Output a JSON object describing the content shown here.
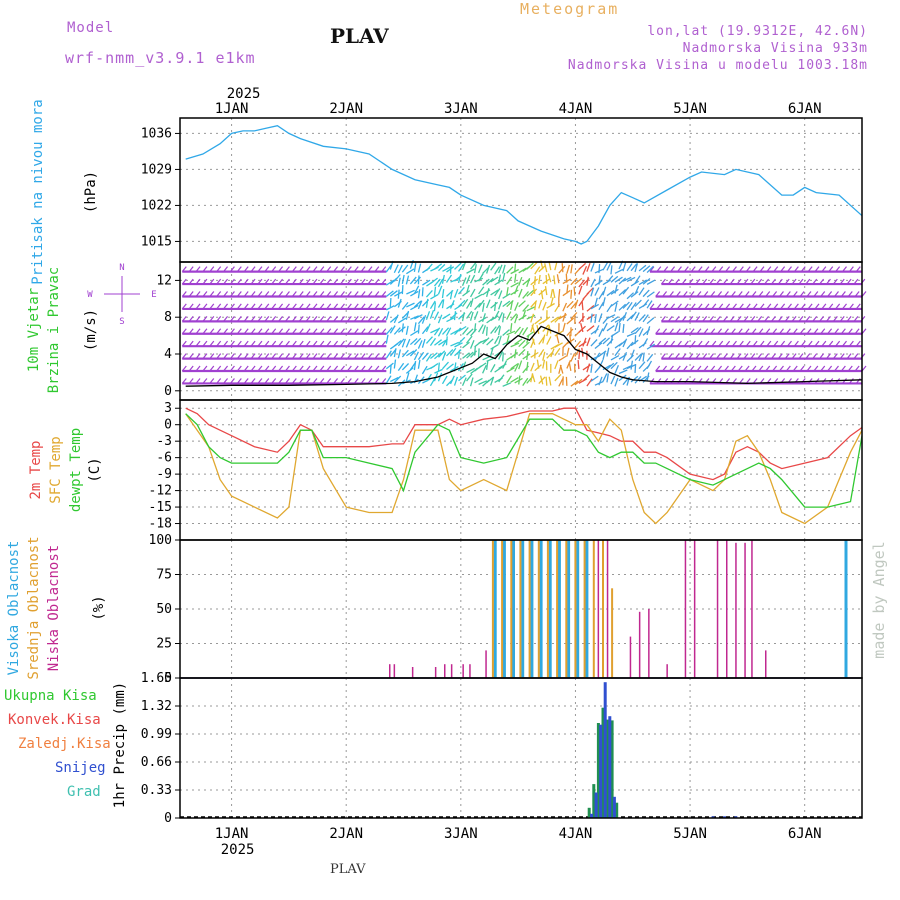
{
  "header": {
    "model_label": "Model",
    "model_name": "wrf-nmm_v3.9.1 e1km",
    "station": "PLAV",
    "meteogram": "Meteogram",
    "lonlat": "lon,lat (19.9312E, 42.6N)",
    "altitude": "Nadmorska Visina 933m",
    "model_altitude": "Nadmorska Visina u modelu 1003.18m",
    "footer": "PLAV",
    "watermark": "made by Angel",
    "year": "2025"
  },
  "colors": {
    "pressure": "#30a8e8",
    "temp2m": "#e84848",
    "sfc": "#e0a830",
    "dewpt": "#30c830",
    "high_cloud": "#30a8e0",
    "mid_cloud": "#e0a030",
    "low_cloud": "#c02890",
    "total_precip": "#209050",
    "snow": "#3050d0",
    "grad": "#40c0b0",
    "wind_purple": "#a040d0"
  },
  "chart_data": [
    {
      "type": "line",
      "name": "pressure",
      "ylabel_main": "Pritisak na nivou mora",
      "ylabel_unit": "(hPa)",
      "yticks": [
        "1036",
        "1029",
        "1022",
        "1015"
      ],
      "ylim": [
        1011,
        1039
      ],
      "x_days": [
        "1JAN",
        "2JAN",
        "3JAN",
        "4JAN",
        "5JAN",
        "6JAN"
      ],
      "x": [
        0.6,
        0.75,
        0.9,
        1.0,
        1.1,
        1.2,
        1.3,
        1.4,
        1.5,
        1.6,
        1.8,
        2.0,
        2.2,
        2.4,
        2.6,
        2.8,
        2.9,
        3.0,
        3.2,
        3.4,
        3.5,
        3.7,
        3.9,
        4.0,
        4.05,
        4.1,
        4.2,
        4.3,
        4.4,
        4.5,
        4.6,
        4.8,
        5.0,
        5.1,
        5.3,
        5.4,
        5.6,
        5.8,
        5.9,
        6.0,
        6.1,
        6.3,
        6.5
      ],
      "values": [
        1031,
        1032,
        1034,
        1036,
        1036.5,
        1036.5,
        1037,
        1037.5,
        1036,
        1035,
        1033.5,
        1033,
        1032,
        1029,
        1027,
        1026,
        1025.5,
        1024,
        1022,
        1021,
        1019,
        1017,
        1015.5,
        1015,
        1014.5,
        1015,
        1018,
        1022,
        1024.5,
        1023.5,
        1022.5,
        1025,
        1027.5,
        1028.5,
        1028,
        1029,
        1028,
        1024,
        1024,
        1025.5,
        1024.5,
        1024,
        1020
      ]
    },
    {
      "type": "line",
      "name": "wind",
      "ylabel_main": "10m Vjetar Brzina i Pravac",
      "ylabel_unit": "(m/s)",
      "compass": [
        "N",
        "W",
        "E",
        "S"
      ],
      "yticks": [
        "12",
        "8",
        "4",
        "0"
      ],
      "ylim": [
        -1,
        14
      ],
      "x": [
        0.6,
        1.0,
        1.5,
        2.0,
        2.4,
        2.6,
        2.8,
        2.9,
        3.0,
        3.1,
        3.2,
        3.3,
        3.4,
        3.5,
        3.6,
        3.7,
        3.8,
        3.9,
        4.0,
        4.1,
        4.2,
        4.3,
        4.4,
        4.5,
        4.7,
        5.0,
        5.5,
        6.0,
        6.5
      ],
      "values": [
        0.5,
        0.6,
        0.6,
        0.7,
        0.8,
        1.0,
        1.5,
        2.0,
        2.5,
        3.0,
        4.0,
        3.5,
        5.0,
        6.0,
        5.5,
        7.0,
        6.5,
        6.0,
        4.5,
        4.0,
        3.0,
        2.0,
        1.5,
        1.2,
        1.0,
        1.0,
        0.8,
        1.0,
        1.2
      ]
    },
    {
      "type": "line",
      "name": "temperature",
      "ylabel_lines": [
        "2m Temp",
        "SFC Temp",
        "dewpt Temp"
      ],
      "ylabel_unit": "(C)",
      "yticks": [
        "3",
        "0",
        "-3",
        "-6",
        "-9",
        "-12",
        "-15",
        "-18"
      ],
      "ylim": [
        -21,
        4.5
      ],
      "x": [
        0.6,
        0.7,
        0.8,
        0.9,
        1.0,
        1.2,
        1.4,
        1.5,
        1.6,
        1.7,
        1.8,
        2.0,
        2.2,
        2.4,
        2.5,
        2.6,
        2.8,
        2.9,
        3.0,
        3.2,
        3.4,
        3.6,
        3.8,
        3.9,
        4.0,
        4.1,
        4.2,
        4.3,
        4.4,
        4.5,
        4.6,
        4.7,
        4.8,
        5.0,
        5.2,
        5.3,
        5.4,
        5.5,
        5.6,
        5.7,
        5.8,
        6.0,
        6.2,
        6.4,
        6.5
      ],
      "series": [
        {
          "name": "2m Temp",
          "values": [
            3,
            2,
            0,
            -1,
            -2,
            -4,
            -5,
            -3,
            0,
            -1,
            -4,
            -4,
            -4,
            -3.5,
            -3.5,
            0,
            0,
            1,
            0,
            1,
            1.5,
            2.5,
            2.5,
            3,
            3,
            -1,
            -1.5,
            -2,
            -3,
            -3,
            -5,
            -5,
            -6,
            -9,
            -10,
            -9,
            -5,
            -4,
            -5,
            -7,
            -8,
            -7,
            -6,
            -2,
            -0.5
          ]
        },
        {
          "name": "SFC Temp",
          "values": [
            2,
            -1,
            -4,
            -10,
            -13,
            -15,
            -17,
            -15,
            -1,
            -1,
            -8,
            -15,
            -16,
            -16,
            -10,
            -1,
            -1,
            -10,
            -12,
            -10,
            -12,
            2,
            2,
            1,
            0,
            0,
            -3,
            1,
            -1,
            -10,
            -16,
            -18,
            -16,
            -10,
            -12,
            -10,
            -3,
            -2,
            -5,
            -10,
            -16,
            -18,
            -15,
            -5,
            -1
          ]
        },
        {
          "name": "dewpt Temp",
          "values": [
            2,
            0,
            -4,
            -6,
            -7,
            -7,
            -7,
            -5,
            -1,
            -1,
            -6,
            -6,
            -7,
            -8,
            -12,
            -5,
            0,
            -1,
            -6,
            -7,
            -6,
            1,
            1,
            -1,
            -1,
            -2,
            -5,
            -6,
            -5,
            -5,
            -7,
            -7,
            -8,
            -10,
            -11,
            -10,
            -9,
            -8,
            -7,
            -8,
            -10,
            -15,
            -15,
            -14,
            -2
          ]
        }
      ]
    },
    {
      "type": "bar",
      "name": "clouds",
      "ylabel_lines": [
        "Visoka Oblacnost",
        "Srednja Oblacnost",
        "Niska Oblacnost"
      ],
      "ylabel_unit": "(%)",
      "yticks": [
        "100",
        "75",
        "50",
        "25",
        "0"
      ],
      "ylim": [
        0,
        100
      ],
      "series": [
        {
          "name": "Visoka Oblacnost",
          "x": [
            3.3,
            3.38,
            3.46,
            3.54,
            3.62,
            3.7,
            3.78,
            3.86,
            3.94,
            4.02,
            4.1,
            6.36
          ],
          "values": [
            100,
            100,
            100,
            100,
            100,
            100,
            100,
            100,
            100,
            100,
            100,
            100
          ]
        },
        {
          "name": "Srednja Oblacnost",
          "x": [
            3.28,
            3.36,
            3.44,
            3.52,
            3.6,
            3.68,
            3.76,
            3.84,
            3.92,
            4.0,
            4.08,
            4.16,
            4.24,
            4.32
          ],
          "values": [
            100,
            100,
            100,
            100,
            100,
            100,
            100,
            100,
            100,
            100,
            100,
            100,
            100,
            65
          ]
        },
        {
          "name": "Niska Oblacnost",
          "x": [
            2.38,
            2.42,
            2.58,
            2.78,
            2.86,
            2.92,
            3.02,
            3.08,
            3.22,
            4.2,
            4.28,
            4.48,
            4.56,
            4.64,
            4.8,
            4.96,
            5.04,
            5.24,
            5.32,
            5.4,
            5.48,
            5.54,
            5.66
          ],
          "values": [
            10,
            10,
            8,
            8,
            10,
            10,
            10,
            10,
            20,
            100,
            100,
            30,
            48,
            50,
            10,
            100,
            100,
            100,
            100,
            98,
            98,
            100,
            20
          ]
        }
      ]
    },
    {
      "type": "bar",
      "name": "precip",
      "legend": [
        "Ukupna Kisa",
        "Konvek.Kisa",
        "Zaledj.Kisa",
        "Snijeg",
        "Grad"
      ],
      "ylabel_unit": "1hr Precip (mm)",
      "yticks": [
        "1.65",
        "1.32",
        "0.99",
        "0.66",
        "0.33",
        "0"
      ],
      "ylim": [
        0,
        1.65
      ],
      "series": [
        {
          "name": "Ukupna Kisa",
          "x": [
            4.12,
            4.16,
            4.2,
            4.24,
            4.28,
            4.32,
            4.36
          ],
          "values": [
            0.12,
            0.4,
            1.12,
            1.3,
            1.16,
            1.15,
            0.18
          ]
        },
        {
          "name": "Snijeg",
          "x": [
            4.14,
            4.18,
            4.22,
            4.26,
            4.3,
            4.34,
            5.2,
            5.3,
            5.4
          ],
          "values": [
            0.05,
            0.3,
            1.1,
            1.6,
            1.2,
            0.25,
            0.02,
            0.02,
            0.02
          ]
        }
      ]
    }
  ]
}
